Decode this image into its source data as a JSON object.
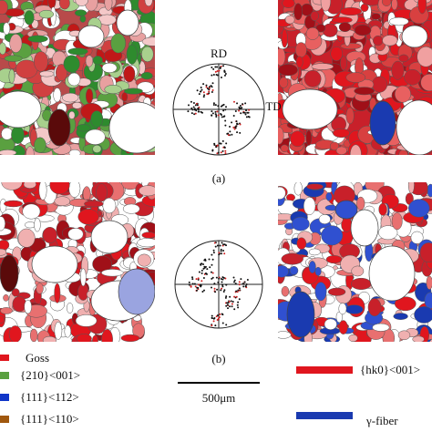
{
  "figure": {
    "panels": [
      {
        "label": "(a)",
        "pole_figure": {
          "rd": "RD",
          "td": "TD"
        }
      },
      {
        "label": "(b)"
      }
    ],
    "legend_left": [
      "Goss",
      "{210}<001>",
      "{111}<112>",
      "{111}<110>"
    ],
    "legend_right": [
      "{hk0}<001>",
      "γ-fiber"
    ],
    "scale_bar": "500μm"
  }
}
